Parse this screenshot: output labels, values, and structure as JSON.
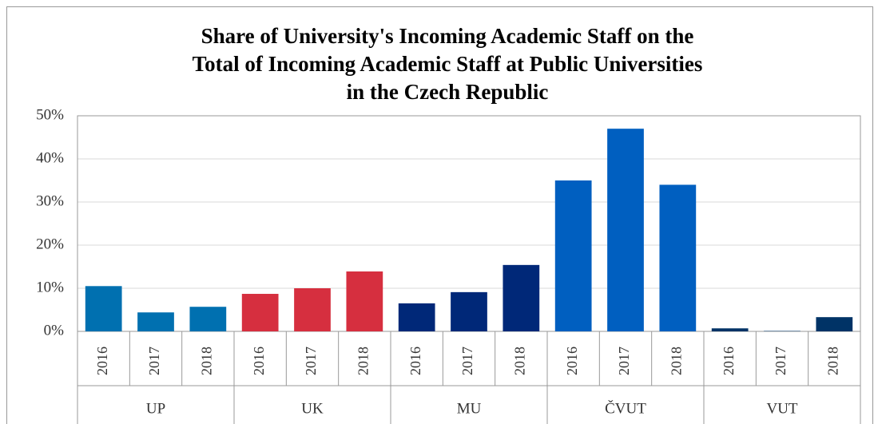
{
  "chart_data": {
    "type": "bar",
    "title": [
      "Share of University's Incoming Academic Staff on the",
      "Total of Incoming Academic Staff at Public Universities",
      "in the Czech Republic"
    ],
    "groups": [
      {
        "name": "UP",
        "color": "#0070b0",
        "categories": [
          "2016",
          "2017",
          "2018"
        ],
        "values": [
          10.5,
          4.4,
          5.7
        ]
      },
      {
        "name": "UK",
        "color": "#d62f3f",
        "categories": [
          "2016",
          "2017",
          "2018"
        ],
        "values": [
          8.7,
          10,
          13.9
        ]
      },
      {
        "name": "MU",
        "color": "#002878",
        "categories": [
          "2016",
          "2017",
          "2018"
        ],
        "values": [
          6.5,
          9.1,
          15.4
        ]
      },
      {
        "name": "ČVUT",
        "color": "#005fc0",
        "categories": [
          "2016",
          "2017",
          "2018"
        ],
        "values": [
          35,
          47,
          34
        ]
      },
      {
        "name": "VUT",
        "color": "#003366",
        "categories": [
          "2016",
          "2017",
          "2018"
        ],
        "values": [
          0.7,
          0.1,
          3.3
        ]
      }
    ],
    "ylim": [
      0,
      50
    ],
    "yticks": [
      {
        "value": 0,
        "label": "0%"
      },
      {
        "value": 10,
        "label": "10%"
      },
      {
        "value": 20,
        "label": "20%"
      },
      {
        "value": 30,
        "label": "30%"
      },
      {
        "value": 40,
        "label": "40%"
      },
      {
        "value": 50,
        "label": "50%"
      }
    ],
    "grid": true
  }
}
